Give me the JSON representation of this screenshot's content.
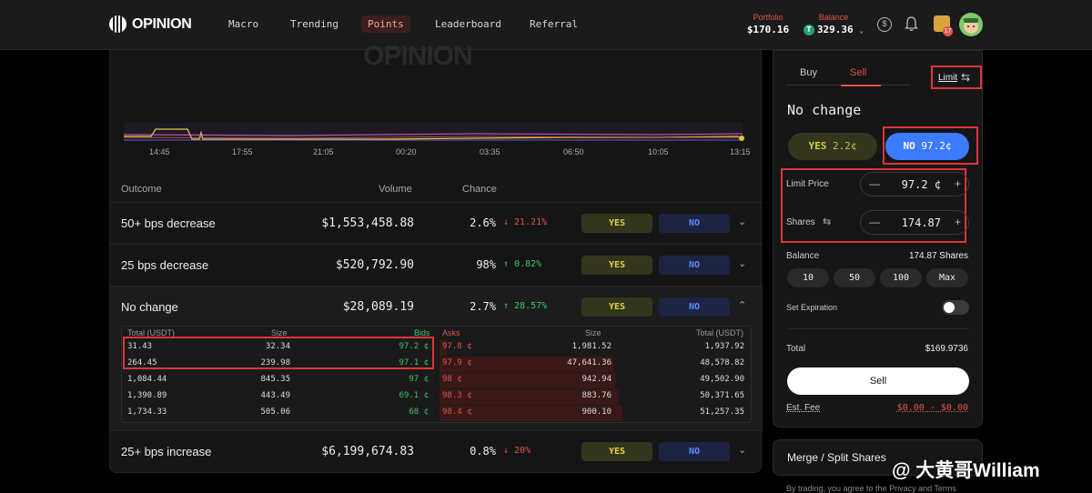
{
  "header": {
    "logo_text": "OPINION",
    "nav": [
      "Macro",
      "Trending",
      "Points",
      "Leaderboard",
      "Referral"
    ],
    "active_nav": "Points",
    "portfolio_label": "Portfolio",
    "portfolio_value": "$170.16",
    "balance_label": "Balance",
    "balance_value": "329.36",
    "dollar_icon": "$",
    "notification_count": "17"
  },
  "chart": {
    "watermark": "OPINION",
    "x_ticks": [
      "14:45",
      "17:55",
      "21:05",
      "00:20",
      "03:35",
      "06:50",
      "10:05",
      "13:15"
    ]
  },
  "table": {
    "columns": {
      "outcome": "Outcome",
      "volume": "Volume",
      "chance": "Chance"
    },
    "yes_label": "YES",
    "no_label": "NO",
    "rows": [
      {
        "name": "50+ bps decrease",
        "volume": "$1,553,458.88",
        "chance": "2.6%",
        "delta": "↓ 21.21%",
        "dir": "down"
      },
      {
        "name": "25 bps decrease",
        "volume": "$520,792.90",
        "chance": "98%",
        "delta": "↑ 0.82%",
        "dir": "up"
      },
      {
        "name": "No change",
        "volume": "$28,089.19",
        "chance": "2.7%",
        "delta": "↑ 28.57%",
        "dir": "up"
      },
      {
        "name": "25+ bps increase",
        "volume": "$6,199,674.83",
        "chance": "0.8%",
        "delta": "↓ 20%",
        "dir": "down"
      }
    ]
  },
  "orderbook": {
    "headers": {
      "total_left": "Total (USDT)",
      "size_left": "Size",
      "bids": "Bids",
      "asks": "Asks",
      "size_right": "Size",
      "total_right": "Total (USDT)"
    },
    "rows": [
      {
        "bid_total": "31.43",
        "bid_size": "32.34",
        "bid_price": "97.2 ¢",
        "ask_price": "97.8 ¢",
        "ask_size": "1,981.52",
        "ask_total": "1,937.92",
        "depth": 0.04
      },
      {
        "bid_total": "264.45",
        "bid_size": "239.98",
        "bid_price": "97.1 ¢",
        "ask_price": "97.9 ¢",
        "ask_size": "47,641.36",
        "ask_total": "48,578.82",
        "depth": 0.93
      },
      {
        "bid_total": "1,084.44",
        "bid_size": "845.35",
        "bid_price": "97 ¢",
        "ask_price": "98 ¢",
        "ask_size": "942.94",
        "ask_total": "49,502.90",
        "depth": 0.94
      },
      {
        "bid_total": "1,390.89",
        "bid_size": "443.49",
        "bid_price": "69.1 ¢",
        "ask_price": "98.3 ¢",
        "ask_size": "883.76",
        "ask_total": "50,371.65",
        "depth": 0.96
      },
      {
        "bid_total": "1,734.33",
        "bid_size": "505.06",
        "bid_price": "68 ¢",
        "ask_price": "98.4 ¢",
        "ask_size": "900.10",
        "ask_total": "51,257.35",
        "depth": 0.98
      }
    ]
  },
  "trade_panel": {
    "tab_buy": "Buy",
    "tab_sell": "Sell",
    "order_type": "Limit",
    "swap_icon": "⇆",
    "outcome_title": "No change",
    "yes_button": "YES",
    "yes_price": "2.2¢",
    "no_button": "NO",
    "no_price": "97.2¢",
    "limit_price_label": "Limit Price",
    "limit_price_value": "97.2 ¢",
    "shares_label": "Shares",
    "shares_value": "174.87",
    "minus": "—",
    "plus": "+",
    "balance_label": "Balance",
    "balance_value": "174.87 Shares",
    "quick_amounts": [
      "10",
      "50",
      "100",
      "Max"
    ],
    "expiration_label": "Set Expiration",
    "total_label": "Total",
    "total_value": "$169.9736",
    "sell_button": "Sell",
    "fee_label": "Est. Fee",
    "fee_value": "$0.00 - $0.00"
  },
  "merge": {
    "label": "Merge / Split Shares"
  },
  "footer": {
    "text": "By trading, you agree to the Privacy and Terms"
  },
  "watermark_overlay": "@ 大黄哥William"
}
